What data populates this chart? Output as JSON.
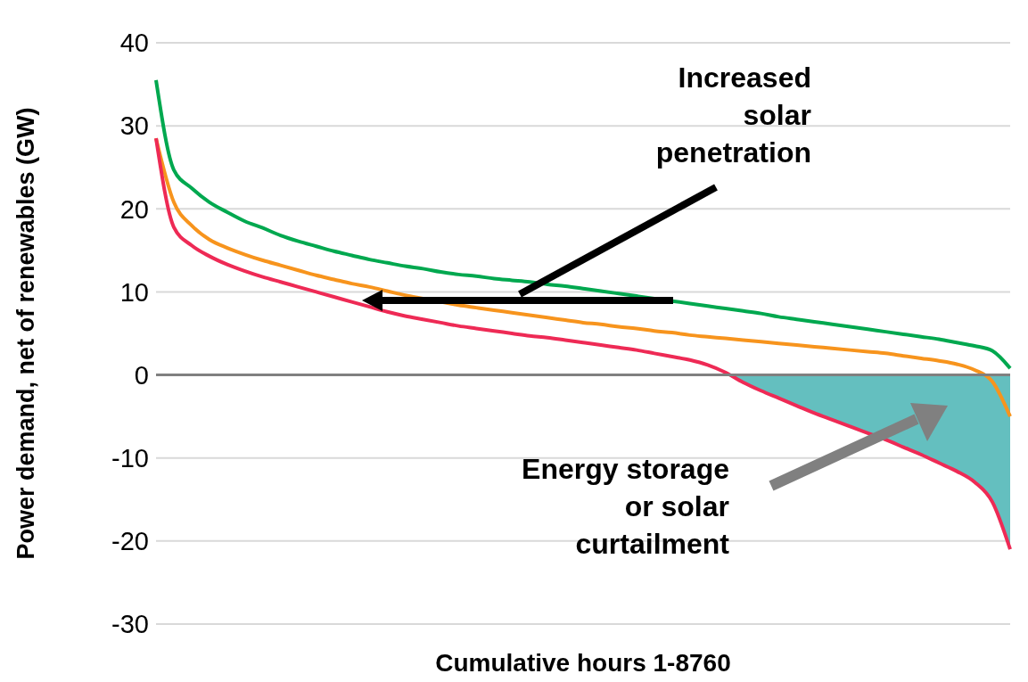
{
  "chart_data": {
    "type": "line",
    "xlabel": "Cumulative hours 1-8760",
    "ylabel": "Power demand, net of renewables (GW)",
    "categories": [
      null,
      null,
      null,
      null,
      null,
      null,
      null,
      null,
      null,
      null,
      null,
      null,
      null,
      null,
      null,
      null,
      null,
      null,
      null,
      null,
      null,
      null,
      null,
      null,
      null,
      null,
      null,
      null,
      null,
      null,
      null,
      null,
      null,
      null,
      null,
      null,
      null,
      null,
      null,
      null,
      null,
      null,
      null,
      null,
      null,
      null,
      null,
      null,
      null
    ],
    "series": [
      {
        "type": "area",
        "color": "#64bfbf",
        "values": [
          null,
          null,
          null,
          null,
          null,
          null,
          null,
          null,
          null,
          null,
          null,
          null,
          null,
          null,
          null,
          null,
          null,
          null,
          null,
          null,
          null,
          null,
          null,
          null,
          null,
          null,
          null,
          null,
          null,
          null,
          null,
          null,
          0,
          -0.9,
          -1.9,
          -2.8,
          -3.7,
          -4.6,
          -5.4,
          -6.2,
          -7.0,
          -7.8,
          -8.7,
          -9.6,
          -10.6,
          -11.6,
          -12.9,
          -15.3,
          -21.0
        ]
      },
      {
        "color": "#00a84f",
        "values": [
          35.5,
          24.7,
          22.5,
          20.8,
          19.6,
          18.5,
          17.7,
          16.8,
          16.1,
          15.5,
          14.9,
          14.4,
          13.9,
          13.5,
          13.1,
          12.8,
          12.4,
          12.1,
          11.9,
          11.6,
          11.4,
          11.2,
          10.9,
          10.7,
          10.4,
          10.1,
          9.8,
          9.5,
          9.2,
          8.9,
          8.6,
          8.3,
          8.0,
          7.7,
          7.4,
          7.0,
          6.7,
          6.4,
          6.1,
          5.8,
          5.5,
          5.2,
          4.9,
          4.6,
          4.3,
          3.9,
          3.5,
          2.9,
          0.8
        ]
      },
      {
        "color": "#f7941d",
        "values": [
          28.5,
          20.8,
          18.0,
          16.3,
          15.3,
          14.5,
          13.8,
          13.2,
          12.6,
          12.0,
          11.5,
          11.0,
          10.6,
          10.1,
          9.6,
          9.2,
          8.8,
          8.4,
          8.1,
          7.8,
          7.5,
          7.2,
          6.9,
          6.6,
          6.3,
          6.1,
          5.8,
          5.6,
          5.3,
          5.1,
          4.8,
          4.6,
          4.4,
          4.2,
          4.0,
          3.8,
          3.6,
          3.4,
          3.2,
          3.0,
          2.8,
          2.6,
          2.3,
          2.0,
          1.7,
          1.3,
          0.6,
          -0.8,
          -5.0
        ]
      },
      {
        "color": "#ee2a55",
        "values": [
          28.5,
          17.8,
          15.6,
          14.3,
          13.3,
          12.5,
          11.8,
          11.2,
          10.6,
          10.0,
          9.4,
          8.8,
          8.2,
          7.6,
          7.1,
          6.7,
          6.3,
          5.9,
          5.6,
          5.3,
          5.0,
          4.7,
          4.5,
          4.2,
          3.9,
          3.6,
          3.3,
          3.0,
          2.6,
          2.2,
          1.8,
          1.2,
          0.3,
          -0.9,
          -1.9,
          -2.8,
          -3.7,
          -4.6,
          -5.4,
          -6.2,
          -7.0,
          -7.8,
          -8.7,
          -9.6,
          -10.6,
          -11.6,
          -12.9,
          -15.3,
          -21.0
        ]
      }
    ],
    "ylim": [
      -30,
      40
    ],
    "yticks": [
      -30,
      -20,
      -10,
      0,
      10,
      20,
      30,
      40
    ],
    "grid": "y",
    "marker": "none",
    "ref_lines": [
      {
        "axis": "y",
        "value": 0,
        "color": "#808080"
      }
    ],
    "annotations": [
      "Increased solar penetration",
      "Energy storage or solar curtailment"
    ]
  }
}
